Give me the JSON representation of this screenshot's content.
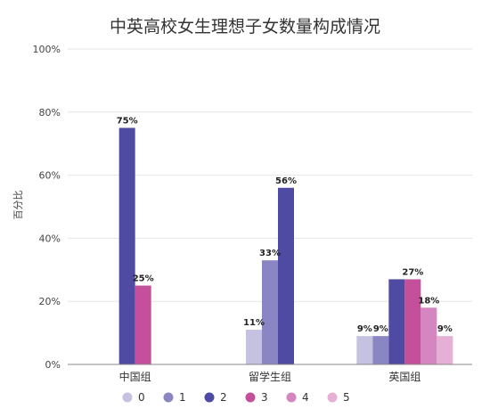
{
  "chart_data": {
    "type": "bar",
    "title": "中英高校女生理想子女数量构成情况",
    "xlabel": "",
    "ylabel": "百分比",
    "categories": [
      "中国组",
      "留学生组",
      "英国组"
    ],
    "ylim": [
      0,
      100
    ],
    "yticks": [
      "0%",
      "20%",
      "40%",
      "60%",
      "80%",
      "100%"
    ],
    "grid": true,
    "legend_position": "bottom",
    "series": [
      {
        "name": "0",
        "color": "#c5c1e0",
        "values": [
          null,
          11,
          9
        ],
        "labels": [
          "",
          "11%",
          "9%"
        ]
      },
      {
        "name": "1",
        "color": "#8a86c4",
        "values": [
          null,
          33,
          9
        ],
        "labels": [
          "",
          "33%",
          "9%"
        ]
      },
      {
        "name": "2",
        "color": "#4f4aa2",
        "values": [
          75,
          56,
          27
        ],
        "labels": [
          "75%",
          "56%",
          ""
        ]
      },
      {
        "name": "3",
        "color": "#c4509c",
        "values": [
          25,
          null,
          27
        ],
        "labels": [
          "25%",
          "",
          "27%"
        ]
      },
      {
        "name": "4",
        "color": "#d585bf",
        "values": [
          null,
          null,
          18
        ],
        "labels": [
          "",
          "",
          "18%"
        ]
      },
      {
        "name": "5",
        "color": "#e6b0d6",
        "values": [
          null,
          null,
          9
        ],
        "labels": [
          "",
          "",
          "9%"
        ]
      }
    ]
  }
}
